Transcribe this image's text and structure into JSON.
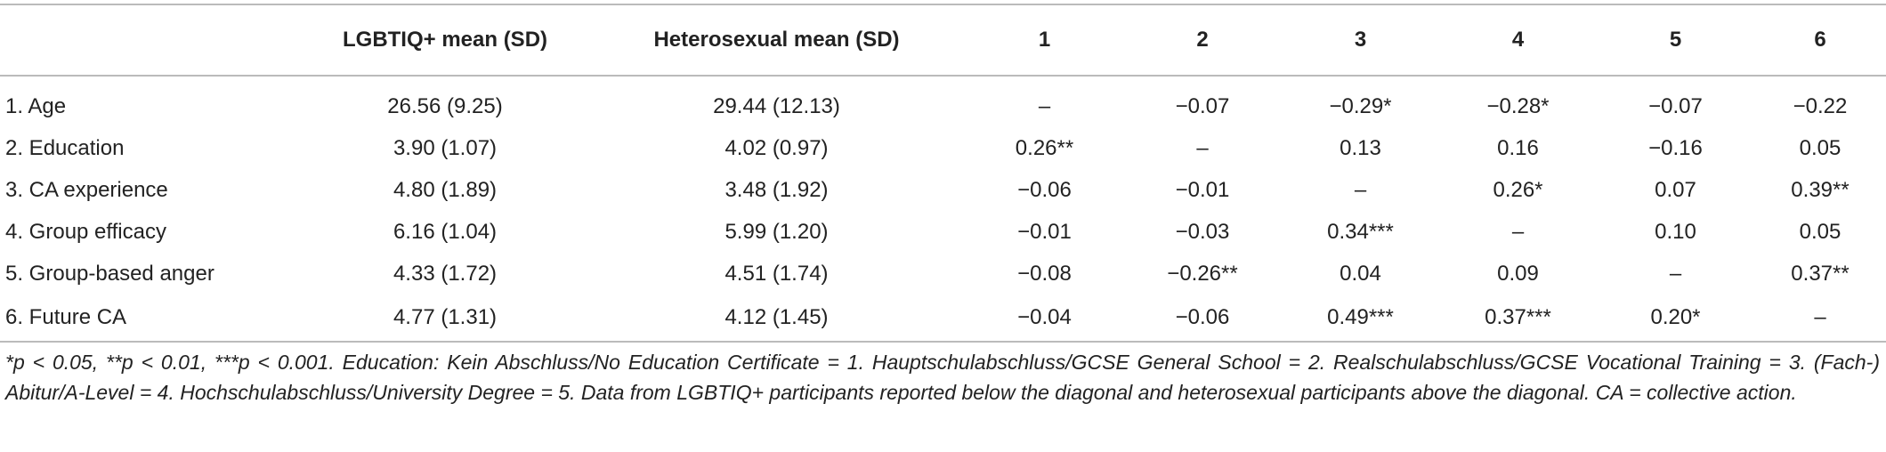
{
  "table": {
    "header": [
      "",
      "LGBTIQ+ mean (SD)",
      "Heterosexual mean (SD)",
      "1",
      "2",
      "3",
      "4",
      "5",
      "6"
    ],
    "rows": [
      [
        "1. Age",
        "26.56 (9.25)",
        "29.44 (12.13)",
        "–",
        "−0.07",
        "−0.29*",
        "−0.28*",
        "−0.07",
        "−0.22"
      ],
      [
        "2. Education",
        "3.90 (1.07)",
        "4.02 (0.97)",
        "0.26**",
        "–",
        "0.13",
        "0.16",
        "−0.16",
        "0.05"
      ],
      [
        "3. CA experience",
        "4.80 (1.89)",
        "3.48 (1.92)",
        "−0.06",
        "−0.01",
        "–",
        "0.26*",
        "0.07",
        "0.39**"
      ],
      [
        "4. Group efficacy",
        "6.16 (1.04)",
        "5.99 (1.20)",
        "−0.01",
        "−0.03",
        "0.34***",
        "–",
        "0.10",
        "0.05"
      ],
      [
        "5. Group-based anger",
        "4.33 (1.72)",
        "4.51 (1.74)",
        "−0.08",
        "−0.26**",
        "0.04",
        "0.09",
        "–",
        "0.37**"
      ],
      [
        "6. Future CA",
        "4.77 (1.31)",
        "4.12 (1.45)",
        "−0.04",
        "−0.06",
        "0.49***",
        "0.37***",
        "0.20*",
        "–"
      ]
    ],
    "footnote": "*p < 0.05, **p < 0.01, ***p < 0.001. Education: Kein Abschluss/No Education Certificate = 1. Hauptschulabschluss/GCSE General School = 2. Realschulabschluss/GCSE Vocational Training = 3. (Fach-) Abitur/A-Level = 4. Hochschulabschluss/University Degree = 5. Data from LGBTIQ+ participants reported below the diagonal and heterosexual participants above the diagonal. CA = collective action."
  }
}
